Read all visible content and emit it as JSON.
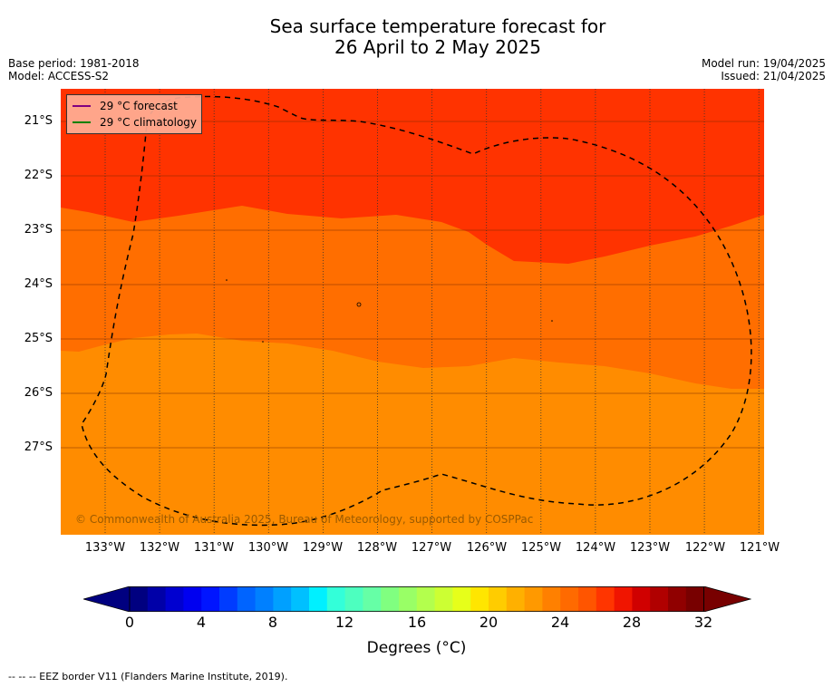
{
  "title": {
    "line1": "Sea surface temperature forecast for",
    "line2": "26 April to 2 May 2025"
  },
  "meta": {
    "base_period": "Base period: 1981-2018",
    "model": "Model: ACCESS-S2",
    "model_run": "Model run: 19/04/2025",
    "issued": "Issued: 21/04/2025"
  },
  "legend": {
    "forecast": "29 °C  forecast",
    "climatology": "29 °C  climatology",
    "forecast_color": "#800080",
    "climatology_color": "#008000"
  },
  "map": {
    "lat_labels": [
      "21°S",
      "22°S",
      "23°S",
      "24°S",
      "25°S",
      "26°S",
      "27°S"
    ],
    "lon_labels": [
      "133°W",
      "132°W",
      "131°W",
      "130°W",
      "129°W",
      "128°W",
      "127°W",
      "126°W",
      "125°W",
      "124°W",
      "123°W",
      "122°W",
      "121°W"
    ],
    "copyright": "© Commonwealth of Australia 2025, Bureau of Meteorology, supported by COSPPac",
    "band_colors": [
      "#ff8c00",
      "#ff6e00",
      "#ff3300"
    ]
  },
  "colorbar": {
    "ticks": [
      "0",
      "4",
      "8",
      "12",
      "16",
      "20",
      "24",
      "28",
      "32"
    ],
    "label": "Degrees (°C)",
    "colors": [
      "#000080",
      "#0000a8",
      "#0000d0",
      "#0000f0",
      "#0015ff",
      "#003cff",
      "#0064ff",
      "#0080ff",
      "#00a0ff",
      "#00c0ff",
      "#00f0ff",
      "#33ffd9",
      "#4dffbf",
      "#66ffa6",
      "#80ff80",
      "#99ff66",
      "#b3ff4d",
      "#ccff33",
      "#e6ff1a",
      "#ffe600",
      "#ffcc00",
      "#ffb000",
      "#ff9900",
      "#ff8000",
      "#ff6a00",
      "#ff5500",
      "#ff3500",
      "#f01500",
      "#d00000",
      "#b00000",
      "#900000",
      "#780000"
    ]
  },
  "footnote": "--  --  -- EEZ border V11 (Flanders Marine Institute, 2019)."
}
